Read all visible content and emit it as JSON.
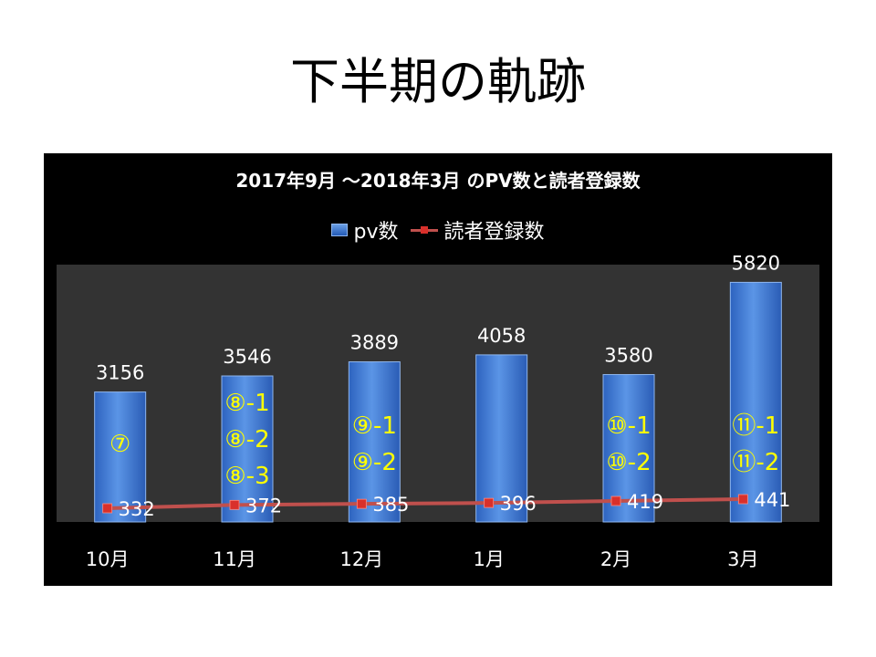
{
  "slide": {
    "title": "下半期の軌跡"
  },
  "chart_data": {
    "type": "bar",
    "title": "2017年9月 ～2018年3月 のPV数と読者登録数",
    "categories": [
      "10月",
      "11月",
      "12月",
      "1月",
      "2月",
      "3月"
    ],
    "series": [
      {
        "name": "pv数",
        "type": "bar",
        "values": [
          3156,
          3546,
          3889,
          4058,
          3580,
          5820
        ]
      },
      {
        "name": "読者登録数",
        "type": "line",
        "values": [
          332,
          372,
          385,
          396,
          419,
          441
        ]
      }
    ],
    "legend_position": "top",
    "grid": false,
    "annotations": [
      [
        "⑦"
      ],
      [
        "⑧-1",
        "⑧-2",
        "⑧-3"
      ],
      [
        "⑨-1",
        "⑨-2"
      ],
      [],
      [
        "⑩-1",
        "⑩-2"
      ],
      [
        "⑪-1",
        "⑪-2"
      ]
    ],
    "colors": {
      "bar": "#3f7fd8",
      "line": "#c0504d",
      "marker": "#d9302b",
      "annotation": "#ffff00",
      "background": "#000000",
      "plot_area": "#333333"
    }
  }
}
